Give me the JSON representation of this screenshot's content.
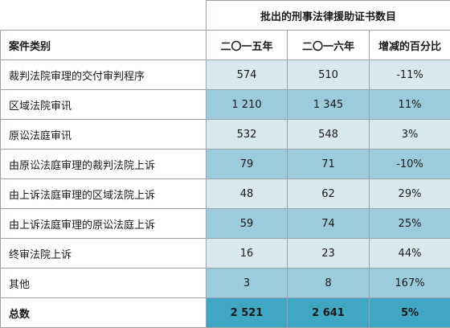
{
  "header": {
    "group_title": "批出的刑事法律援助证书数目",
    "category_label": "案件类别",
    "col_2015": "二〇一五年",
    "col_2016": "二〇一六年",
    "col_change": "增减的百分比"
  },
  "rows": [
    {
      "category": "裁判法院审理的交付审判程序",
      "y2015": "574",
      "y2016": "510",
      "change": "-11%"
    },
    {
      "category": "区域法院审讯",
      "y2015": "1 210",
      "y2016": "1 345",
      "change": "11%"
    },
    {
      "category": "原讼法庭审讯",
      "y2015": "532",
      "y2016": "548",
      "change": "3%"
    },
    {
      "category": "由原讼法庭审理的裁判法院上诉",
      "y2015": "79",
      "y2016": "71",
      "change": "-10%"
    },
    {
      "category": "由上诉法庭审理的区域法院上诉",
      "y2015": "48",
      "y2016": "62",
      "change": "29%"
    },
    {
      "category": "由上诉法庭审理的原讼法庭上诉",
      "y2015": "59",
      "y2016": "74",
      "change": "25%"
    },
    {
      "category": "终审法院上诉",
      "y2015": "16",
      "y2016": "23",
      "change": "44%"
    },
    {
      "category": "其他",
      "y2015": "3",
      "y2016": "8",
      "change": "167%"
    }
  ],
  "total": {
    "category": "总数",
    "y2015": "2 521",
    "y2016": "2 641",
    "change": "5%"
  }
}
